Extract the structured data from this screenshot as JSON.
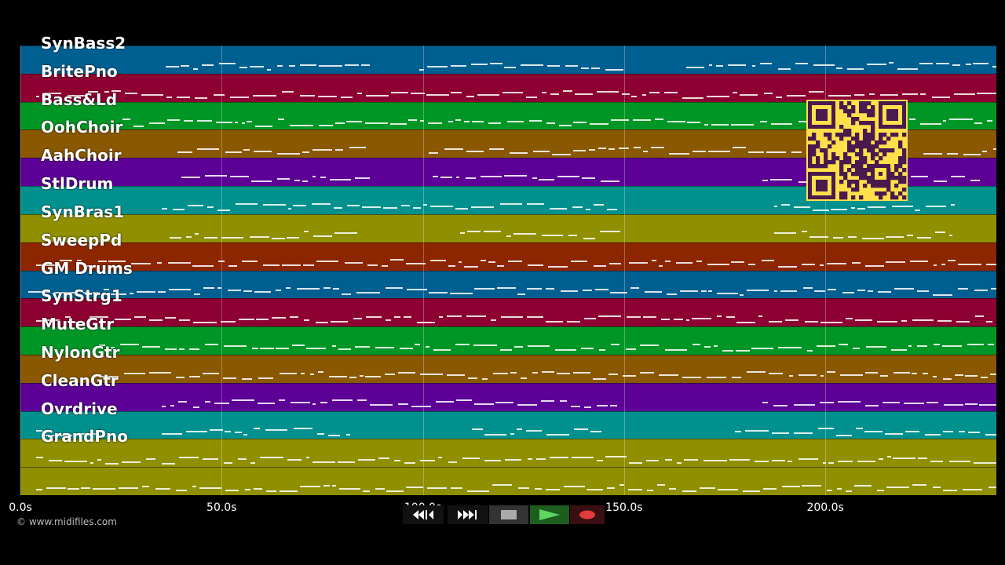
{
  "tracks": [
    {
      "name": "SynBass2",
      "color": "#005f91"
    },
    {
      "name": "BritePno",
      "color": "#8c0032"
    },
    {
      "name": "Bass&Ld",
      "color": "#009626"
    },
    {
      "name": "OohChoir",
      "color": "#8a5800"
    },
    {
      "name": "AahChoir",
      "color": "#5c0096"
    },
    {
      "name": "StlDrum",
      "color": "#00918e"
    },
    {
      "name": "SynBras1",
      "color": "#8f8f00"
    },
    {
      "name": "SweepPd",
      "color": "#8c2600"
    },
    {
      "name": "GM Drums",
      "color": "#005f91"
    },
    {
      "name": "SynStrg1",
      "color": "#8c0032"
    },
    {
      "name": "MuteGtr",
      "color": "#009626"
    },
    {
      "name": "NylonGtr",
      "color": "#8a5800"
    },
    {
      "name": "CleanGtr",
      "color": "#5c0096"
    },
    {
      "name": "Ovrdrive",
      "color": "#00918e"
    },
    {
      "name": "GrandPno",
      "color": "#8f8f00"
    },
    {
      "name": "",
      "color": "#8f8f00"
    }
  ],
  "timeline": {
    "max_seconds": 242.5,
    "ticks": [
      {
        "value": 0,
        "label": "0.0s"
      },
      {
        "value": 50,
        "label": "50.0s"
      },
      {
        "value": 100,
        "label": "100.0s"
      },
      {
        "value": 150,
        "label": "150.0s"
      },
      {
        "value": 200,
        "label": "200.0s"
      }
    ]
  },
  "watermark": "© www.midifiles.com",
  "controls": [
    {
      "name": "rewind-button",
      "icon": "rewind-icon"
    },
    {
      "name": "fast-forward-button",
      "icon": "fast-forward-icon"
    },
    {
      "name": "stop-button",
      "icon": "stop-icon"
    },
    {
      "name": "play-button",
      "icon": "play-icon"
    },
    {
      "name": "record-button",
      "icon": "record-icon"
    }
  ],
  "qr_icon": "qr-code-icon"
}
